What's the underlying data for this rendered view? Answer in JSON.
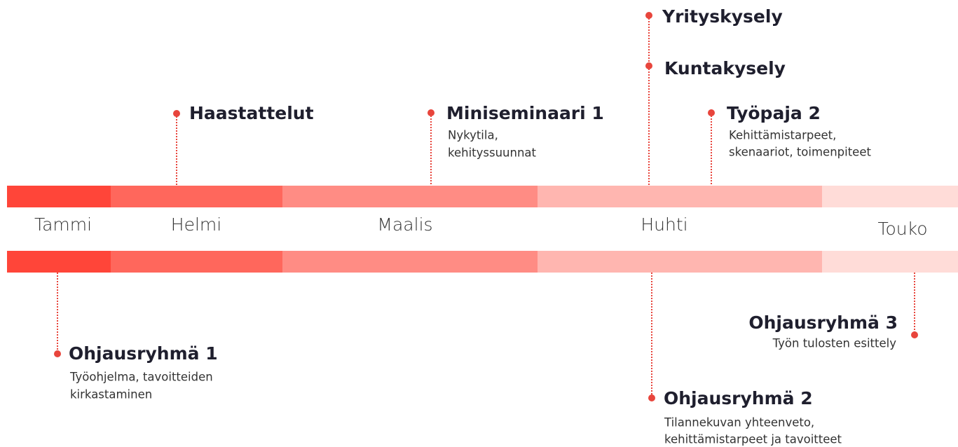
{
  "months": [
    "Tammi",
    "Helmi",
    "Maalis",
    "Huhti",
    "Touko"
  ],
  "events_above": [
    {
      "title": "Haastattelut"
    },
    {
      "title": "Miniseminaari 1",
      "description": [
        "Nykytila,",
        "kehityssuunnat"
      ]
    },
    {
      "title": "Yrityskysely"
    },
    {
      "title": "Kuntakysely"
    },
    {
      "title": "Työpaja 2",
      "description": [
        "Kehittämistarpeet,",
        "skenaariot, toimenpiteet"
      ]
    }
  ],
  "events_below": [
    {
      "title": "Ohjausryhmä 1",
      "description": [
        "Työohjelma, tavoitteiden",
        "kirkastaminen"
      ]
    },
    {
      "title": "Ohjausryhmä 2",
      "description": [
        "Tilannekuvan yhteenveto,",
        "kehittämistarpeet ja tavoitteet"
      ]
    },
    {
      "title": "Ohjausryhmä 3",
      "description": [
        "Työn tulosten esittely"
      ]
    }
  ]
}
